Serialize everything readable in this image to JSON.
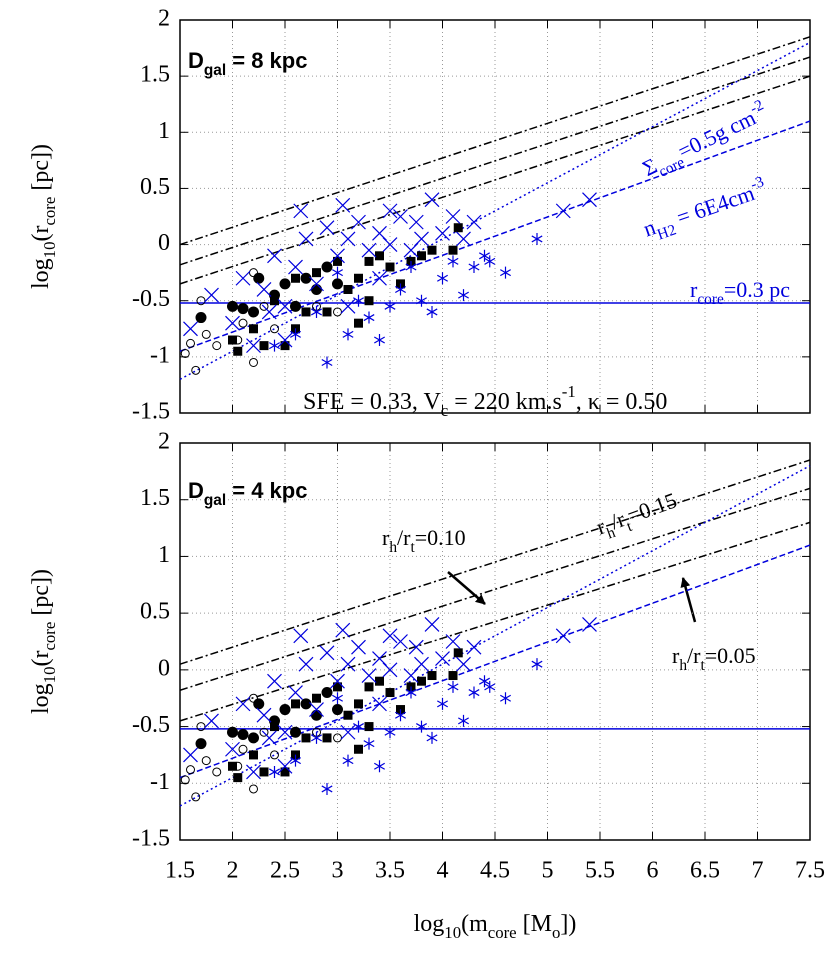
{
  "chart_data": [
    {
      "type": "scatter",
      "ylabel": [
        {
          "text": "log"
        },
        {
          "text": "10",
          "sub": true
        },
        {
          "text": "(r"
        },
        {
          "text": "core",
          "sub": true
        },
        {
          "text": " [pc])"
        }
      ],
      "xlim": [
        1.5,
        7.5
      ],
      "xticks": [
        1.5,
        2,
        2.5,
        3,
        3.5,
        4,
        4.5,
        5,
        5.5,
        6,
        6.5,
        7,
        7.5
      ],
      "x_tick_labels": false,
      "ylim": [
        -1.5,
        2
      ],
      "yticks": [
        -1.5,
        -1,
        -0.5,
        0,
        0.5,
        1,
        1.5,
        2
      ],
      "grid": true,
      "annotations": [
        {
          "color": "#000000",
          "bold": true,
          "segments": [
            {
              "text": "D"
            },
            {
              "text": "gal",
              "sub": true
            },
            {
              "text": " = 8 kpc"
            }
          ]
        },
        {
          "color": "#0000dd",
          "segments": [
            {
              "text": "Σ"
            },
            {
              "text": "core",
              "sub": true
            },
            {
              "text": "=0.5g cm"
            },
            {
              "text": "-2",
              "sup": true
            }
          ]
        },
        {
          "color": "#0000dd",
          "segments": [
            {
              "text": "n"
            },
            {
              "text": "H2",
              "sub": true
            },
            {
              "text": " = 6E4cm"
            },
            {
              "text": "-3",
              "sup": true
            }
          ]
        },
        {
          "color": "#0000dd",
          "segments": [
            {
              "text": "r"
            },
            {
              "text": "core",
              "sub": true
            },
            {
              "text": "=0.3 pc"
            }
          ]
        },
        {
          "color": "#000000",
          "segments": [
            {
              "text": "SFE = 0.33, V"
            },
            {
              "text": "c",
              "sub": true
            },
            {
              "text": " = 220 km.s"
            },
            {
              "text": "-1",
              "sup": true
            },
            {
              "text": ", κ = 0.50"
            }
          ]
        }
      ],
      "lines": [
        {
          "style": "dashdot",
          "color": "#000000",
          "x": [
            1.5,
            7.5
          ],
          "values": [
            0.0,
            1.85
          ]
        },
        {
          "style": "dashdot",
          "color": "#000000",
          "x": [
            1.5,
            7.5
          ],
          "values": [
            -0.18,
            1.67
          ]
        },
        {
          "style": "dashdot",
          "color": "#000000",
          "x": [
            1.5,
            7.5
          ],
          "values": [
            -0.35,
            1.5
          ]
        },
        {
          "style": "dotted",
          "color": "#0000dd",
          "x": [
            1.5,
            7.5
          ],
          "values": [
            -1.2,
            1.8
          ]
        },
        {
          "style": "dashed",
          "color": "#0000dd",
          "x": [
            1.5,
            7.5
          ],
          "values": [
            -0.95,
            1.1
          ]
        },
        {
          "style": "solid",
          "color": "#0000dd",
          "x": [
            1.5,
            7.5
          ],
          "values": [
            -0.52,
            -0.52
          ]
        }
      ],
      "series": [
        {
          "marker": "open-circle",
          "color": "#000000",
          "x": [
            1.55,
            1.6,
            1.65,
            1.7,
            1.75,
            1.85,
            2.05,
            2.2,
            2.1,
            2.3,
            2.4,
            2.8,
            3.0,
            2.2
          ],
          "values": [
            -0.97,
            -0.88,
            -1.12,
            -0.5,
            -0.8,
            -0.9,
            -0.85,
            -1.05,
            -0.7,
            -0.55,
            -0.75,
            -0.55,
            -0.6,
            -0.25
          ]
        },
        {
          "marker": "filled-circle",
          "color": "#000000",
          "x": [
            1.7,
            2.0,
            2.1,
            2.25,
            2.4,
            2.5,
            2.7,
            2.9,
            2.8,
            3.0,
            2.6,
            2.2
          ],
          "values": [
            -0.65,
            -0.55,
            -0.57,
            -0.3,
            -0.45,
            -0.35,
            -0.3,
            -0.2,
            -0.4,
            -0.35,
            -0.55,
            -0.6
          ]
        },
        {
          "marker": "square",
          "color": "#000000",
          "x": [
            2.0,
            2.05,
            2.2,
            2.3,
            2.4,
            2.5,
            2.6,
            2.6,
            2.8,
            2.9,
            3.0,
            3.1,
            3.2,
            3.3,
            3.4,
            3.5,
            3.6,
            3.7,
            3.8,
            3.9,
            4.1,
            4.15,
            3.3,
            2.7,
            3.2
          ],
          "values": [
            -0.85,
            -0.95,
            -0.75,
            -0.9,
            -0.5,
            -0.9,
            -0.75,
            -0.3,
            -0.25,
            -0.6,
            -0.15,
            -0.4,
            -0.3,
            -0.15,
            -0.1,
            -0.2,
            -0.35,
            -0.15,
            -0.1,
            -0.05,
            -0.05,
            0.15,
            -0.5,
            -0.6,
            -0.7
          ]
        },
        {
          "marker": "cross",
          "color": "#0000dd",
          "x": [
            1.6,
            1.8,
            2.0,
            2.1,
            2.3,
            2.4,
            2.5,
            2.6,
            2.7,
            2.8,
            2.9,
            3.0,
            3.1,
            3.2,
            3.3,
            3.4,
            3.5,
            3.6,
            3.7,
            3.8,
            3.9,
            4.0,
            4.1,
            4.2,
            4.3,
            5.15,
            5.4,
            2.2,
            2.5,
            3.1,
            3.4,
            2.65,
            3.05,
            3.5,
            3.75,
            2.35
          ],
          "values": [
            -0.75,
            -0.45,
            -0.7,
            -0.3,
            -0.4,
            -0.1,
            -0.55,
            -0.2,
            0.05,
            -0.35,
            0.15,
            -0.1,
            0.05,
            0.2,
            -0.05,
            0.1,
            0.0,
            0.25,
            -0.05,
            0.05,
            0.4,
            0.1,
            0.25,
            0.05,
            0.2,
            0.3,
            0.4,
            -0.9,
            -0.85,
            -0.55,
            -0.3,
            0.3,
            0.35,
            0.3,
            0.2,
            -0.6
          ]
        },
        {
          "marker": "asterisk",
          "color": "#0000dd",
          "x": [
            2.4,
            2.6,
            2.9,
            3.1,
            3.3,
            3.5,
            3.6,
            3.8,
            3.9,
            4.0,
            4.2,
            4.3,
            4.4,
            4.45,
            4.6,
            4.9,
            3.2,
            2.8,
            3.0,
            3.7,
            4.1,
            3.4
          ],
          "values": [
            -0.9,
            -0.8,
            -1.05,
            -0.8,
            -0.65,
            -0.55,
            -0.4,
            -0.5,
            -0.6,
            -0.3,
            -0.45,
            -0.2,
            -0.1,
            -0.15,
            -0.25,
            0.05,
            -0.5,
            -0.6,
            -0.25,
            -0.2,
            -0.15,
            -0.85
          ]
        }
      ]
    },
    {
      "type": "scatter",
      "ylabel": [
        {
          "text": "log"
        },
        {
          "text": "10",
          "sub": true
        },
        {
          "text": "(r"
        },
        {
          "text": "core",
          "sub": true
        },
        {
          "text": " [pc])"
        }
      ],
      "xlabel": [
        {
          "text": "log"
        },
        {
          "text": "10",
          "sub": true
        },
        {
          "text": "(m"
        },
        {
          "text": "core",
          "sub": true
        },
        {
          "text": " [M"
        },
        {
          "text": "o",
          "sub": true
        },
        {
          "text": "])"
        }
      ],
      "xlim": [
        1.5,
        7.5
      ],
      "xticks": [
        1.5,
        2,
        2.5,
        3,
        3.5,
        4,
        4.5,
        5,
        5.5,
        6,
        6.5,
        7,
        7.5
      ],
      "x_tick_labels": true,
      "ylim": [
        -1.5,
        2
      ],
      "yticks": [
        -1.5,
        -1,
        -0.5,
        0,
        0.5,
        1,
        1.5,
        2
      ],
      "grid": true,
      "annotations": [
        {
          "color": "#000000",
          "bold": true,
          "segments": [
            {
              "text": "D"
            },
            {
              "text": "gal",
              "sub": true
            },
            {
              "text": " = 4 kpc"
            }
          ]
        },
        {
          "color": "#000000",
          "segments": [
            {
              "text": "r"
            },
            {
              "text": "h",
              "sub": true
            },
            {
              "text": "/r"
            },
            {
              "text": "t",
              "sub": true
            },
            {
              "text": "=0.10"
            }
          ]
        },
        {
          "color": "#000000",
          "segments": [
            {
              "text": "r"
            },
            {
              "text": "h",
              "sub": true
            },
            {
              "text": "/r"
            },
            {
              "text": "t",
              "sub": true
            },
            {
              "text": "=0.15"
            }
          ]
        },
        {
          "color": "#000000",
          "segments": [
            {
              "text": "r"
            },
            {
              "text": "h",
              "sub": true
            },
            {
              "text": "/r"
            },
            {
              "text": "t",
              "sub": true
            },
            {
              "text": "=0.05"
            }
          ]
        }
      ],
      "lines": [
        {
          "style": "dashdot",
          "color": "#000000",
          "x": [
            1.5,
            7.5
          ],
          "values": [
            0.05,
            1.85
          ]
        },
        {
          "style": "dashdot",
          "color": "#000000",
          "x": [
            1.5,
            7.5
          ],
          "values": [
            -0.18,
            1.6
          ]
        },
        {
          "style": "dashdot",
          "color": "#000000",
          "x": [
            1.5,
            7.5
          ],
          "values": [
            -0.45,
            1.3
          ]
        },
        {
          "style": "dotted",
          "color": "#0000dd",
          "x": [
            1.5,
            7.5
          ],
          "values": [
            -1.2,
            1.8
          ]
        },
        {
          "style": "dashed",
          "color": "#0000dd",
          "x": [
            1.5,
            7.5
          ],
          "values": [
            -0.95,
            1.1
          ]
        },
        {
          "style": "solid",
          "color": "#0000dd",
          "x": [
            1.5,
            7.5
          ],
          "values": [
            -0.52,
            -0.52
          ]
        }
      ],
      "series": [
        {
          "marker": "open-circle",
          "color": "#000000",
          "x": [
            1.55,
            1.6,
            1.65,
            1.7,
            1.75,
            1.85,
            2.05,
            2.2,
            2.1,
            2.3,
            2.4,
            2.8,
            3.0,
            2.2
          ],
          "values": [
            -0.97,
            -0.88,
            -1.12,
            -0.5,
            -0.8,
            -0.9,
            -0.85,
            -1.05,
            -0.7,
            -0.55,
            -0.75,
            -0.55,
            -0.6,
            -0.25
          ]
        },
        {
          "marker": "filled-circle",
          "color": "#000000",
          "x": [
            1.7,
            2.0,
            2.1,
            2.25,
            2.4,
            2.5,
            2.7,
            2.9,
            2.8,
            3.0,
            2.6,
            2.2
          ],
          "values": [
            -0.65,
            -0.55,
            -0.57,
            -0.3,
            -0.45,
            -0.35,
            -0.3,
            -0.2,
            -0.4,
            -0.35,
            -0.55,
            -0.6
          ]
        },
        {
          "marker": "square",
          "color": "#000000",
          "x": [
            2.0,
            2.05,
            2.2,
            2.3,
            2.4,
            2.5,
            2.6,
            2.6,
            2.8,
            2.9,
            3.0,
            3.1,
            3.2,
            3.3,
            3.4,
            3.5,
            3.6,
            3.7,
            3.8,
            3.9,
            4.1,
            4.15,
            3.3,
            2.7,
            3.2
          ],
          "values": [
            -0.85,
            -0.95,
            -0.75,
            -0.9,
            -0.5,
            -0.9,
            -0.75,
            -0.3,
            -0.25,
            -0.6,
            -0.15,
            -0.4,
            -0.3,
            -0.15,
            -0.1,
            -0.2,
            -0.35,
            -0.15,
            -0.1,
            -0.05,
            -0.05,
            0.15,
            -0.5,
            -0.6,
            -0.7
          ]
        },
        {
          "marker": "cross",
          "color": "#0000dd",
          "x": [
            1.6,
            1.8,
            2.0,
            2.1,
            2.3,
            2.4,
            2.5,
            2.6,
            2.7,
            2.8,
            2.9,
            3.0,
            3.1,
            3.2,
            3.3,
            3.4,
            3.5,
            3.6,
            3.7,
            3.8,
            3.9,
            4.0,
            4.1,
            4.2,
            4.3,
            5.15,
            5.4,
            2.2,
            2.5,
            3.1,
            3.4,
            2.65,
            3.05,
            3.5,
            3.75,
            2.35
          ],
          "values": [
            -0.75,
            -0.45,
            -0.7,
            -0.3,
            -0.4,
            -0.1,
            -0.55,
            -0.2,
            0.05,
            -0.35,
            0.15,
            -0.1,
            0.05,
            0.2,
            -0.05,
            0.1,
            0.0,
            0.25,
            -0.05,
            0.05,
            0.4,
            0.1,
            0.25,
            0.05,
            0.2,
            0.3,
            0.4,
            -0.9,
            -0.85,
            -0.55,
            -0.3,
            0.3,
            0.35,
            0.3,
            0.2,
            -0.6
          ]
        },
        {
          "marker": "asterisk",
          "color": "#0000dd",
          "x": [
            2.4,
            2.6,
            2.9,
            3.1,
            3.3,
            3.5,
            3.6,
            3.8,
            3.9,
            4.0,
            4.2,
            4.3,
            4.4,
            4.45,
            4.6,
            4.9,
            3.2,
            2.8,
            3.0,
            3.7,
            4.1,
            3.4
          ],
          "values": [
            -0.9,
            -0.8,
            -1.05,
            -0.8,
            -0.65,
            -0.55,
            -0.4,
            -0.5,
            -0.6,
            -0.3,
            -0.45,
            -0.2,
            -0.1,
            -0.15,
            -0.25,
            0.05,
            -0.5,
            -0.6,
            -0.25,
            -0.2,
            -0.15,
            -0.85
          ]
        }
      ]
    }
  ]
}
